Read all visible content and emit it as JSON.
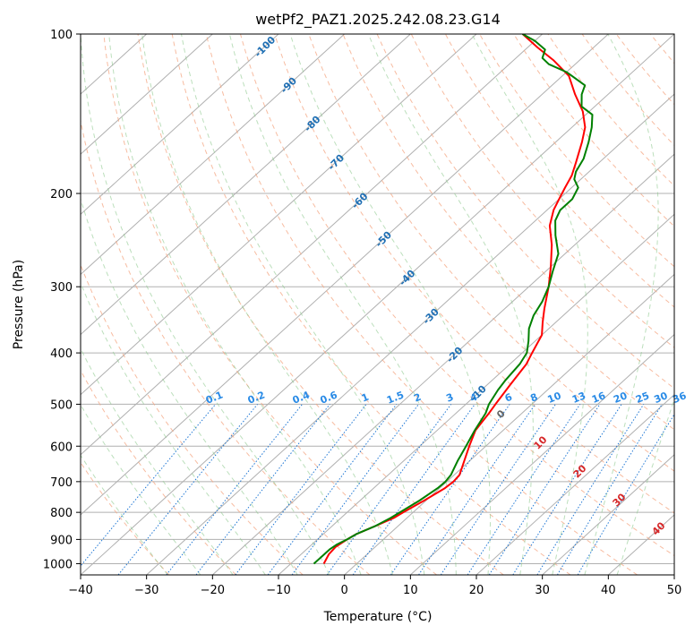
{
  "chart_data": {
    "type": "skew-t",
    "title": "wetPf2_PAZ1.2025.242.08.23.G14",
    "xlabel": "Temperature (°C)",
    "ylabel": "Pressure (hPa)",
    "xlim": [
      -40,
      50
    ],
    "ylim": [
      1050,
      100
    ],
    "x_ticks": [
      -40,
      -30,
      -20,
      -10,
      0,
      10,
      20,
      30,
      40,
      50
    ],
    "y_ticks": [
      1000,
      900,
      800,
      700,
      600,
      500,
      400,
      300,
      200,
      100
    ],
    "temperature_profile": {
      "name": "Temperature",
      "color": "#ff0000",
      "points": [
        [
          1000,
          -5
        ],
        [
          960,
          -5.8
        ],
        [
          930,
          -6
        ],
        [
          900,
          -5.5
        ],
        [
          880,
          -5
        ],
        [
          850,
          -3.5
        ],
        [
          820,
          -2
        ],
        [
          800,
          -1.5
        ],
        [
          760,
          -0.3
        ],
        [
          720,
          0.8
        ],
        [
          700,
          1
        ],
        [
          680,
          0.8
        ],
        [
          640,
          -0.8
        ],
        [
          600,
          -2.5
        ],
        [
          560,
          -4.2
        ],
        [
          520,
          -5
        ],
        [
          500,
          -5.5
        ],
        [
          460,
          -6.5
        ],
        [
          420,
          -7.5
        ],
        [
          400,
          -8.5
        ],
        [
          370,
          -10
        ],
        [
          350,
          -12
        ],
        [
          330,
          -14
        ],
        [
          300,
          -17
        ],
        [
          275,
          -20
        ],
        [
          250,
          -23.5
        ],
        [
          230,
          -27
        ],
        [
          215,
          -29
        ],
        [
          205,
          -30
        ],
        [
          195,
          -31
        ],
        [
          185,
          -32
        ],
        [
          175,
          -33.5
        ],
        [
          160,
          -36
        ],
        [
          150,
          -38
        ],
        [
          140,
          -41
        ],
        [
          130,
          -45
        ],
        [
          120,
          -49
        ],
        [
          112,
          -54
        ],
        [
          106,
          -58.5
        ],
        [
          100,
          -63
        ]
      ]
    },
    "dewpoint_profile": {
      "name": "Dewpoint",
      "color": "#008000",
      "points": [
        [
          1000,
          -6.5
        ],
        [
          960,
          -6.5
        ],
        [
          940,
          -6.5
        ],
        [
          920,
          -6.2
        ],
        [
          900,
          -5.5
        ],
        [
          880,
          -5
        ],
        [
          850,
          -3.5
        ],
        [
          820,
          -2.5
        ],
        [
          800,
          -2
        ],
        [
          760,
          -1
        ],
        [
          720,
          -0.3
        ],
        [
          700,
          -0.2
        ],
        [
          680,
          -0.5
        ],
        [
          640,
          -1.8
        ],
        [
          600,
          -3
        ],
        [
          560,
          -4.3
        ],
        [
          520,
          -5.5
        ],
        [
          500,
          -6.5
        ],
        [
          470,
          -7.5
        ],
        [
          450,
          -8
        ],
        [
          420,
          -8.5
        ],
        [
          400,
          -9.3
        ],
        [
          380,
          -11
        ],
        [
          360,
          -13
        ],
        [
          340,
          -14.5
        ],
        [
          320,
          -15.5
        ],
        [
          300,
          -17
        ],
        [
          280,
          -19
        ],
        [
          260,
          -21
        ],
        [
          240,
          -24.5
        ],
        [
          225,
          -27
        ],
        [
          215,
          -28
        ],
        [
          205,
          -28
        ],
        [
          195,
          -29
        ],
        [
          188,
          -31
        ],
        [
          182,
          -32
        ],
        [
          172,
          -33
        ],
        [
          160,
          -35
        ],
        [
          150,
          -37
        ],
        [
          142,
          -39
        ],
        [
          137,
          -42
        ],
        [
          130,
          -44
        ],
        [
          125,
          -45
        ],
        [
          118,
          -50
        ],
        [
          114,
          -54
        ],
        [
          111,
          -56
        ],
        [
          107,
          -57
        ],
        [
          103,
          -60
        ],
        [
          100,
          -63
        ]
      ]
    },
    "dry_adiabats_K": [
      -30,
      -20,
      -10,
      0,
      10,
      20,
      30,
      40,
      50,
      60,
      70,
      80,
      90,
      100,
      110,
      120,
      130,
      140,
      150,
      160,
      170,
      180,
      190,
      200,
      210
    ],
    "isotherm_labels": [
      "-100",
      "-90",
      "-80",
      "-70",
      "-60",
      "-50",
      "-40",
      "-30",
      "-20",
      "-10"
    ],
    "mixing_ratio_labels": [
      "0.1",
      "0.2",
      "0.4",
      "0.6",
      "1",
      "1.5",
      "2",
      "3",
      "4",
      "6",
      "8",
      "10",
      "13",
      "16",
      "20",
      "25",
      "30",
      "36"
    ],
    "wet_bulb_labels": [
      "0",
      "10",
      "20",
      "30",
      "40"
    ]
  }
}
